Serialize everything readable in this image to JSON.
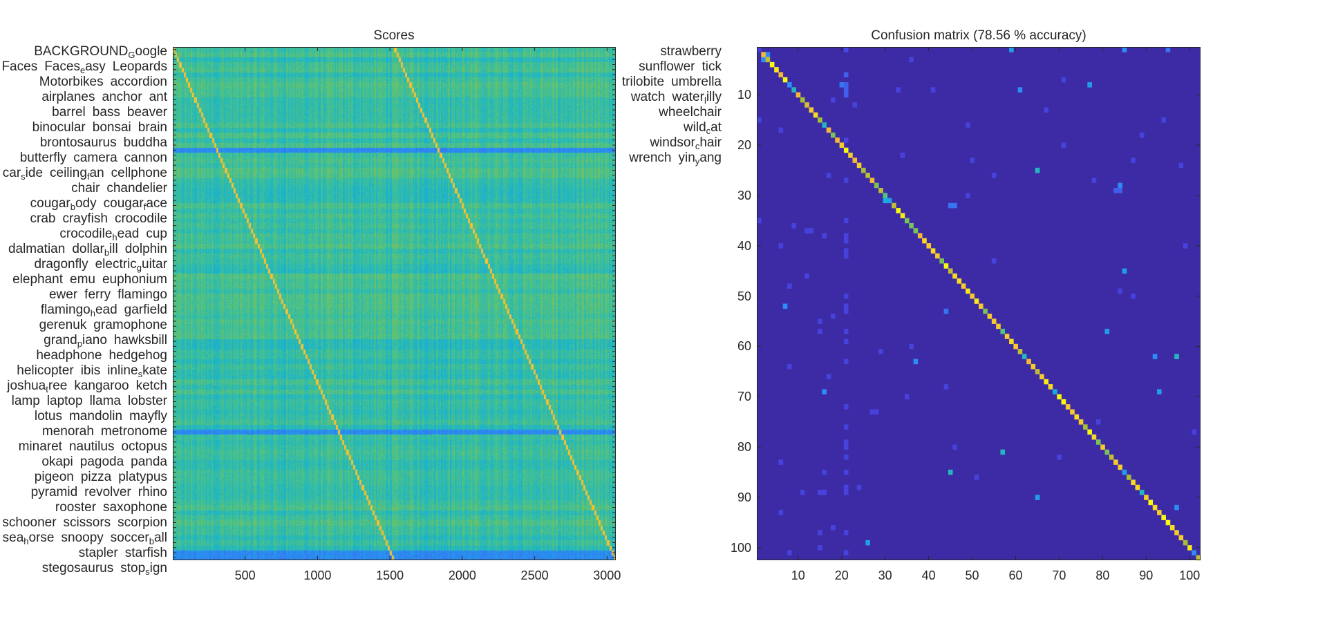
{
  "chart_data": [
    {
      "type": "heatmap",
      "title": "Scores",
      "colormap": "parula",
      "n_rows": 102,
      "n_cols": 3060,
      "xlim": [
        0.5,
        3060.5
      ],
      "xticks": [
        500,
        1000,
        1500,
        2000,
        2500,
        3000
      ],
      "grid": false,
      "row_labels": [
        "BACKGROUND_Google",
        "Faces",
        "Faces_easy",
        "Leopards",
        "Motorbikes",
        "accordion",
        "airplanes",
        "anchor",
        "ant",
        "barrel",
        "bass",
        "beaver",
        "binocular",
        "bonsai",
        "brain",
        "brontosaurus",
        "buddha",
        "butterfly",
        "camera",
        "cannon",
        "car_side",
        "ceiling_fan",
        "cellphone",
        "chair",
        "chandelier",
        "cougar_body",
        "cougar_face",
        "crab",
        "crayfish",
        "crocodile",
        "crocodile_head",
        "cup",
        "dalmatian",
        "dollar_bill",
        "dolphin",
        "dragonfly",
        "electric_guitar",
        "elephant",
        "emu",
        "euphonium",
        "ewer",
        "ferry",
        "flamingo",
        "flamingo_head",
        "garfield",
        "gerenuk",
        "gramophone",
        "grand_piano",
        "hawksbill",
        "headphone",
        "hedgehog",
        "helicopter",
        "ibis",
        "inline_skate",
        "joshua_tree",
        "kangaroo",
        "ketch",
        "lamp",
        "laptop",
        "llama",
        "lobster",
        "lotus",
        "mandolin",
        "mayfly",
        "menorah",
        "metronome",
        "minaret",
        "nautilus",
        "octopus",
        "okapi",
        "pagoda",
        "panda",
        "pigeon",
        "pizza",
        "platypus",
        "pyramid",
        "revolver",
        "rhino",
        "rooster",
        "saxophone",
        "schooner",
        "scissors",
        "scorpion",
        "sea_horse",
        "snoopy",
        "soccer_ball",
        "stapler",
        "starfish",
        "stegosaurus",
        "stop_sign",
        "strawberry",
        "sunflower",
        "tick",
        "trilobite",
        "umbrella",
        "watch",
        "water_lilly",
        "wheelchair",
        "wild_cat",
        "windsor_chair",
        "wrench",
        "yin_yang"
      ],
      "structure": "two diagonal bands of high scores (samples 1-1530 and 1531-3060, 15 samples per class)",
      "low_score_rows": [
        "car_side",
        "revolver",
        "wrench",
        "yin_yang"
      ]
    },
    {
      "type": "heatmap",
      "title": "Confusion matrix (78.56 % accuracy)",
      "colormap": "parula",
      "size": 102,
      "xticks": [
        10,
        20,
        30,
        40,
        50,
        60,
        70,
        80,
        90,
        100
      ],
      "yticks": [
        10,
        20,
        30,
        40,
        50,
        60,
        70,
        80,
        90,
        100
      ],
      "grid": false,
      "diagonal": [
        0.1,
        0.8,
        0.7,
        1,
        0.95,
        0.8,
        1,
        0.3,
        0.45,
        0.8,
        0.65,
        0.75,
        0.85,
        0.9,
        0.65,
        0.45,
        0.8,
        0.6,
        0.8,
        0.85,
        1,
        0.85,
        0.8,
        0.85,
        0.65,
        0.7,
        0.8,
        0.6,
        0.7,
        0.55,
        0.35,
        0.7,
        1,
        0.95,
        0.6,
        0.6,
        0.6,
        0.8,
        0.9,
        0.85,
        0.9,
        0.85,
        0.6,
        1,
        0.7,
        0.9,
        0.9,
        0.85,
        0.95,
        0.85,
        0.95,
        0.85,
        0.6,
        0.85,
        0.85,
        0.85,
        0.55,
        0.85,
        0.9,
        0.85,
        0.7,
        0.45,
        0.8,
        0.85,
        0.7,
        0.85,
        0.95,
        0.9,
        0.4,
        1,
        1,
        0.85,
        0.85,
        0.9,
        0.85,
        0.65,
        1,
        0.9,
        0.6,
        0.85,
        0.6,
        0.7,
        0.85,
        0.85,
        0.35,
        0.65,
        0.9,
        0.9,
        0.45,
        0.85,
        1,
        0.9,
        0.85,
        1,
        1,
        0.9,
        0.85,
        0.85,
        0.65,
        0.95,
        0.3,
        0.7
      ],
      "off_diagonal": [
        [
          1,
          21,
          0.15
        ],
        [
          1,
          59,
          0.35
        ],
        [
          1,
          85,
          0.3
        ],
        [
          1,
          95,
          0.25
        ],
        [
          2,
          3,
          0.3
        ],
        [
          3,
          2,
          0.3
        ],
        [
          6,
          21,
          0.2
        ],
        [
          8,
          21,
          0.2
        ],
        [
          9,
          21,
          0.2
        ],
        [
          10,
          21,
          0.2
        ],
        [
          8,
          20,
          0.25
        ],
        [
          8,
          77,
          0.35
        ],
        [
          9,
          61,
          0.3
        ],
        [
          25,
          65,
          0.45
        ],
        [
          28,
          84,
          0.3
        ],
        [
          29,
          83,
          0.2
        ],
        [
          29,
          84,
          0.2
        ],
        [
          31,
          30,
          0.4
        ],
        [
          32,
          45,
          0.25
        ],
        [
          32,
          46,
          0.25
        ],
        [
          45,
          85,
          0.35
        ],
        [
          52,
          7,
          0.3
        ],
        [
          53,
          44,
          0.25
        ],
        [
          57,
          81,
          0.35
        ],
        [
          62,
          97,
          0.45
        ],
        [
          62,
          92,
          0.3
        ],
        [
          63,
          37,
          0.3
        ],
        [
          69,
          16,
          0.3
        ],
        [
          69,
          93,
          0.35
        ],
        [
          81,
          57,
          0.45
        ],
        [
          85,
          45,
          0.45
        ],
        [
          90,
          65,
          0.35
        ],
        [
          92,
          97,
          0.3
        ],
        [
          99,
          26,
          0.35
        ],
        [
          19,
          21,
          0.12
        ],
        [
          27,
          21,
          0.12
        ],
        [
          35,
          21,
          0.12
        ],
        [
          38,
          21,
          0.12
        ],
        [
          39,
          21,
          0.12
        ],
        [
          41,
          21,
          0.12
        ],
        [
          42,
          21,
          0.12
        ],
        [
          50,
          21,
          0.12
        ],
        [
          52,
          21,
          0.12
        ],
        [
          53,
          21,
          0.12
        ],
        [
          57,
          21,
          0.12
        ],
        [
          59,
          21,
          0.12
        ],
        [
          63,
          21,
          0.12
        ],
        [
          72,
          21,
          0.12
        ],
        [
          76,
          21,
          0.12
        ],
        [
          79,
          21,
          0.12
        ],
        [
          80,
          21,
          0.12
        ],
        [
          82,
          21,
          0.12
        ],
        [
          85,
          21,
          0.12
        ],
        [
          88,
          21,
          0.12
        ],
        [
          89,
          21,
          0.12
        ],
        [
          97,
          21,
          0.12
        ],
        [
          101,
          21,
          0.12
        ],
        [
          3,
          36,
          0.12
        ],
        [
          7,
          71,
          0.12
        ],
        [
          9,
          41,
          0.12
        ],
        [
          9,
          33,
          0.12
        ],
        [
          11,
          18,
          0.12
        ],
        [
          12,
          23,
          0.12
        ],
        [
          13,
          67,
          0.12
        ],
        [
          15,
          1,
          0.12
        ],
        [
          15,
          94,
          0.12
        ],
        [
          16,
          49,
          0.12
        ],
        [
          17,
          6,
          0.12
        ],
        [
          18,
          89,
          0.12
        ],
        [
          20,
          71,
          0.12
        ],
        [
          22,
          34,
          0.12
        ],
        [
          23,
          50,
          0.12
        ],
        [
          23,
          87,
          0.12
        ],
        [
          24,
          98,
          0.12
        ],
        [
          26,
          17,
          0.12
        ],
        [
          26,
          55,
          0.12
        ],
        [
          27,
          78,
          0.12
        ],
        [
          30,
          49,
          0.12
        ],
        [
          35,
          1,
          0.12
        ],
        [
          36,
          9,
          0.12
        ],
        [
          37,
          12,
          0.12
        ],
        [
          37,
          13,
          0.12
        ],
        [
          38,
          16,
          0.12
        ],
        [
          40,
          6,
          0.12
        ],
        [
          40,
          99,
          0.12
        ],
        [
          43,
          55,
          0.12
        ],
        [
          46,
          12,
          0.12
        ],
        [
          48,
          8,
          0.12
        ],
        [
          49,
          84,
          0.12
        ],
        [
          50,
          87,
          0.12
        ],
        [
          54,
          18,
          0.12
        ],
        [
          55,
          15,
          0.12
        ],
        [
          57,
          15,
          0.12
        ],
        [
          60,
          36,
          0.12
        ],
        [
          61,
          29,
          0.12
        ],
        [
          64,
          8,
          0.12
        ],
        [
          66,
          17,
          0.12
        ],
        [
          68,
          44,
          0.12
        ],
        [
          70,
          35,
          0.12
        ],
        [
          73,
          27,
          0.12
        ],
        [
          73,
          28,
          0.12
        ],
        [
          75,
          79,
          0.12
        ],
        [
          77,
          101,
          0.12
        ],
        [
          80,
          46,
          0.12
        ],
        [
          82,
          70,
          0.12
        ],
        [
          83,
          6,
          0.12
        ],
        [
          85,
          16,
          0.12
        ],
        [
          86,
          51,
          0.12
        ],
        [
          88,
          24,
          0.12
        ],
        [
          89,
          11,
          0.12
        ],
        [
          89,
          15,
          0.12
        ],
        [
          89,
          16,
          0.12
        ],
        [
          93,
          6,
          0.12
        ],
        [
          96,
          18,
          0.12
        ],
        [
          97,
          15,
          0.12
        ],
        [
          100,
          15,
          0.12
        ],
        [
          101,
          8,
          0.12
        ]
      ]
    }
  ]
}
